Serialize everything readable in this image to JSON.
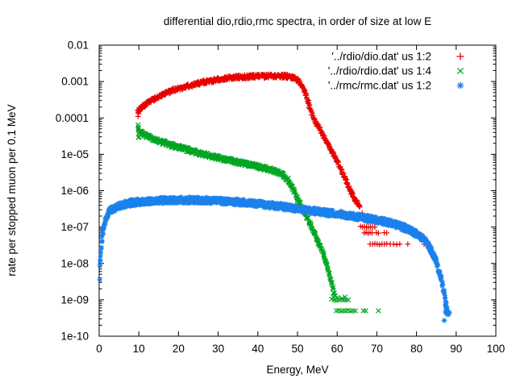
{
  "chart_data": {
    "type": "scatter",
    "title": "differential dio,rdio,rmc spectra, in order of size at low E",
    "xlabel": "Energy, MeV",
    "ylabel": "rate per stopped muon per 0.1 MeV",
    "x_range": [
      0,
      100
    ],
    "x_ticks": [
      0,
      10,
      20,
      30,
      40,
      50,
      60,
      70,
      80,
      90,
      100
    ],
    "y_scale": "log",
    "y_range": [
      1e-10,
      0.01
    ],
    "y_tick_labels": [
      "0.01",
      "0.001",
      "0.0001",
      "1e-05",
      "1e-06",
      "1e-07",
      "1e-08",
      "1e-09",
      "1e-10"
    ],
    "y_tick_values": [
      0.01,
      0.001,
      0.0001,
      1e-05,
      1e-06,
      1e-07,
      1e-08,
      1e-09,
      1e-10
    ],
    "grid": false,
    "legend_position": "top-right-inside",
    "axis_color": "#000000",
    "background_color": "#ffffff",
    "series": [
      {
        "name": "dio",
        "label": "'../rdio/dio.dat' us 1:2",
        "color": "#e60000",
        "marker": "plus",
        "band_halfwidth_decades": 0.055,
        "step": 0.3,
        "points": [
          [
            9.8,
            0.00015
          ],
          [
            11,
            0.00021
          ],
          [
            13,
            0.00029
          ],
          [
            15,
            0.00039
          ],
          [
            17,
            0.00049
          ],
          [
            19,
            0.00059
          ],
          [
            21,
            0.00069
          ],
          [
            24,
            0.00083
          ],
          [
            27,
            0.001
          ],
          [
            30,
            0.00115
          ],
          [
            33,
            0.00128
          ],
          [
            36,
            0.00135
          ],
          [
            40,
            0.0014
          ],
          [
            44,
            0.00142
          ],
          [
            47,
            0.0014
          ],
          [
            48.5,
            0.00133
          ],
          [
            49.5,
            0.00122
          ],
          [
            50.5,
            0.001
          ],
          [
            51.3,
            0.00072
          ],
          [
            52,
            0.00046
          ],
          [
            52.6,
            0.00029
          ],
          [
            53.3,
            0.00017
          ],
          [
            54.2,
            8.5e-05
          ],
          [
            55.3,
            5.8e-05
          ],
          [
            56.5,
            3.2e-05
          ],
          [
            57.7,
            1.8e-05
          ],
          [
            58.8,
            1.1e-05
          ],
          [
            60,
            6.5e-06
          ],
          [
            61,
            3.8e-06
          ],
          [
            62,
            2.2e-06
          ],
          [
            63,
            1.2e-06
          ],
          [
            64,
            7e-07
          ],
          [
            65,
            4.8e-07
          ],
          [
            65.8,
            3.6e-07
          ]
        ],
        "scatter_points": [
          [
            9.8,
            0.00011
          ],
          [
            9.9,
            0.00013
          ],
          [
            10.1,
            0.00019
          ],
          [
            66.3,
            2.4e-07
          ],
          [
            66.9,
            1.8e-07
          ],
          [
            67.5,
            1.4e-07
          ],
          [
            65.9,
            1.05e-07
          ],
          [
            66.4,
            1e-07
          ],
          [
            66.9,
            1.02e-07
          ],
          [
            67.4,
            9.8e-08
          ],
          [
            67.9,
            1e-07
          ],
          [
            68.4,
            1.01e-07
          ],
          [
            68.9,
            9.9e-08
          ],
          [
            69.5,
            1e-07
          ],
          [
            66.8,
            6.9e-08
          ],
          [
            67.3,
            7.1e-08
          ],
          [
            67.8,
            6.8e-08
          ],
          [
            68.3,
            7e-08
          ],
          [
            68.8,
            6.9e-08
          ],
          [
            69.9,
            7e-08
          ],
          [
            70.4,
            6.8e-08
          ],
          [
            71.9,
            7e-08
          ],
          [
            72.5,
            6.9e-08
          ],
          [
            68.3,
            3.4e-08
          ],
          [
            68.9,
            3.4e-08
          ],
          [
            69.5,
            3.5e-08
          ],
          [
            70.1,
            3.4e-08
          ],
          [
            70.7,
            3.3e-08
          ],
          [
            71.3,
            3.4e-08
          ],
          [
            71.9,
            3.4e-08
          ],
          [
            72.5,
            3.5e-08
          ],
          [
            73.4,
            3.4e-08
          ],
          [
            74.2,
            3.4e-08
          ],
          [
            75.0,
            3.3e-08
          ],
          [
            75.8,
            3.4e-08
          ],
          [
            77.8,
            3.4e-08
          ],
          [
            81.9,
            3.4e-08
          ]
        ]
      },
      {
        "name": "rdio",
        "label": "'../rdio/rdio.dat' us 1:4",
        "color": "#00a520",
        "marker": "cross",
        "band_halfwidth_decades": 0.065,
        "step": 0.3,
        "points": [
          [
            9.8,
            4.6e-05
          ],
          [
            11,
            3.6e-05
          ],
          [
            13,
            2.8e-05
          ],
          [
            15,
            2.35e-05
          ],
          [
            18,
            1.8e-05
          ],
          [
            21,
            1.45e-05
          ],
          [
            25,
            1.1e-05
          ],
          [
            30,
            8e-06
          ],
          [
            35,
            6e-06
          ],
          [
            40,
            4.6e-06
          ],
          [
            43,
            3.8e-06
          ],
          [
            46,
            2.9e-06
          ],
          [
            47.5,
            2e-06
          ],
          [
            48.8,
            1.2e-06
          ],
          [
            50,
            6e-07
          ],
          [
            51,
            3.6e-07
          ],
          [
            52,
            2.3e-07
          ],
          [
            53.2,
            1.2e-07
          ],
          [
            54.3,
            7e-08
          ],
          [
            55.2,
            4e-08
          ],
          [
            56.1,
            2.3e-08
          ],
          [
            56.9,
            1.35e-08
          ],
          [
            57.6,
            7.5e-09
          ],
          [
            58.2,
            4.4e-09
          ],
          [
            58.7,
            2.6e-09
          ],
          [
            59.2,
            1.6e-09
          ],
          [
            59.7,
            1.1e-09
          ]
        ],
        "scatter_points": [
          [
            9.8,
            6.5e-05
          ],
          [
            9.9,
            5.6e-05
          ],
          [
            10.1,
            3e-05
          ],
          [
            9.85,
            2.9e-05
          ],
          [
            58.6,
            1.05e-09
          ],
          [
            59.2,
            1e-09
          ],
          [
            59.8,
            9.7e-10
          ],
          [
            60.4,
            1e-09
          ],
          [
            61.0,
            1.03e-09
          ],
          [
            61.6,
            9.9e-10
          ],
          [
            62.2,
            1e-09
          ],
          [
            62.8,
            1e-09
          ],
          [
            59.0,
            1.2e-09
          ],
          [
            60.0,
            1.15e-09
          ],
          [
            61.2,
            1.1e-09
          ],
          [
            62.0,
            1.2e-09
          ],
          [
            59.8,
            5e-10
          ],
          [
            60.4,
            5.1e-10
          ],
          [
            61.0,
            4.9e-10
          ],
          [
            61.6,
            5e-10
          ],
          [
            62.2,
            5e-10
          ],
          [
            62.8,
            5.1e-10
          ],
          [
            63.4,
            4.9e-10
          ],
          [
            64.0,
            5e-10
          ],
          [
            64.6,
            5e-10
          ],
          [
            66.6,
            5e-10
          ],
          [
            67.2,
            5e-10
          ],
          [
            70.4,
            5e-10
          ]
        ]
      },
      {
        "name": "rmc",
        "label": "'../rmc/rmc.dat' us 1:2",
        "color": "#1a80eb",
        "marker": "star",
        "band_halfwidth_decades": 0.09,
        "step": 0.24,
        "points": [
          [
            0.25,
            1.1e-08
          ],
          [
            0.4,
            2.2e-08
          ],
          [
            0.7,
            4.5e-08
          ],
          [
            1.0,
            8e-08
          ],
          [
            1.5,
            1.5e-07
          ],
          [
            2,
            2.1e-07
          ],
          [
            3,
            2.9e-07
          ],
          [
            4,
            3.4e-07
          ],
          [
            5,
            3.8e-07
          ],
          [
            7,
            4.4e-07
          ],
          [
            9,
            4.8e-07
          ],
          [
            12,
            5.1e-07
          ],
          [
            16,
            5.4e-07
          ],
          [
            20,
            5.5e-07
          ],
          [
            24,
            5.5e-07
          ],
          [
            28,
            5.3e-07
          ],
          [
            32,
            5.1e-07
          ],
          [
            36,
            4.8e-07
          ],
          [
            40,
            4.4e-07
          ],
          [
            44,
            3.9e-07
          ],
          [
            48,
            3.4e-07
          ],
          [
            52,
            3e-07
          ],
          [
            56,
            2.6e-07
          ],
          [
            60,
            2.3e-07
          ],
          [
            64,
            2e-07
          ],
          [
            68,
            1.7e-07
          ],
          [
            72,
            1.4e-07
          ],
          [
            75,
            1.15e-07
          ],
          [
            77,
            9.5e-08
          ],
          [
            79,
            7.5e-08
          ],
          [
            81,
            5.5e-08
          ],
          [
            82.5,
            3.8e-08
          ],
          [
            83.5,
            2.6e-08
          ],
          [
            84.5,
            1.5e-08
          ],
          [
            85.3,
            8.5e-09
          ],
          [
            86,
            4.5e-09
          ],
          [
            86.6,
            2.4e-09
          ],
          [
            87.1,
            1.3e-09
          ],
          [
            87.5,
            7e-10
          ],
          [
            87.9,
            4.2e-10
          ]
        ],
        "scatter_points": [
          [
            0.15,
            3.6e-09
          ],
          [
            0.18,
            9e-09
          ],
          [
            87.0,
            2.7e-10
          ],
          [
            87.3,
            4.6e-10
          ],
          [
            87.6,
            4.2e-10
          ],
          [
            87.9,
            4.4e-10
          ],
          [
            88.1,
            4e-10
          ],
          [
            88.3,
            4.5e-10
          ]
        ]
      }
    ]
  }
}
